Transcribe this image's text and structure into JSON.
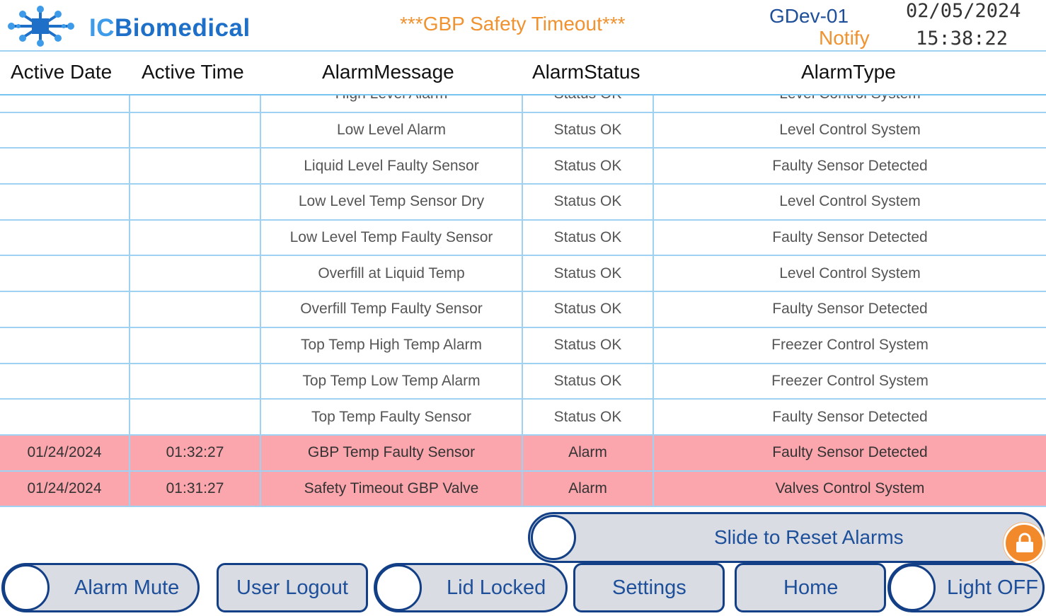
{
  "header": {
    "logo_text": "ICBiomedical",
    "banner": "***GBP Safety Timeout***",
    "device": "GDev-01",
    "notify": "Notify",
    "date": "02/05/2024",
    "time": "15:38:22"
  },
  "table": {
    "columns": [
      "Active Date",
      "Active Time",
      "AlarmMessage",
      "AlarmStatus",
      "AlarmType"
    ],
    "rows": [
      {
        "date": "",
        "time": "",
        "message": "High Level Alarm",
        "status": "Status OK",
        "type": "Level Control System",
        "state": "ok"
      },
      {
        "date": "",
        "time": "",
        "message": "Low Level Alarm",
        "status": "Status OK",
        "type": "Level Control System",
        "state": "ok"
      },
      {
        "date": "",
        "time": "",
        "message": "Liquid Level Faulty Sensor",
        "status": "Status OK",
        "type": "Faulty Sensor Detected",
        "state": "ok"
      },
      {
        "date": "",
        "time": "",
        "message": "Low Level Temp Sensor Dry",
        "status": "Status OK",
        "type": "Level Control System",
        "state": "ok"
      },
      {
        "date": "",
        "time": "",
        "message": "Low Level Temp Faulty Sensor",
        "status": "Status OK",
        "type": "Faulty Sensor Detected",
        "state": "ok"
      },
      {
        "date": "",
        "time": "",
        "message": "Overfill at Liquid Temp",
        "status": "Status OK",
        "type": "Level Control System",
        "state": "ok"
      },
      {
        "date": "",
        "time": "",
        "message": "Overfill Temp Faulty Sensor",
        "status": "Status OK",
        "type": "Faulty Sensor Detected",
        "state": "ok"
      },
      {
        "date": "",
        "time": "",
        "message": "Top Temp High Temp Alarm",
        "status": "Status OK",
        "type": "Freezer Control System",
        "state": "ok"
      },
      {
        "date": "",
        "time": "",
        "message": "Top Temp Low Temp Alarm",
        "status": "Status OK",
        "type": "Freezer Control System",
        "state": "ok"
      },
      {
        "date": "",
        "time": "",
        "message": "Top Temp Faulty Sensor",
        "status": "Status OK",
        "type": "Faulty Sensor Detected",
        "state": "ok"
      },
      {
        "date": "01/24/2024",
        "time": "01:32:27",
        "message": "GBP Temp Faulty Sensor",
        "status": "Alarm",
        "type": "Faulty Sensor Detected",
        "state": "alarm"
      },
      {
        "date": "01/24/2024",
        "time": "01:31:27",
        "message": "Safety Timeout GBP Valve",
        "status": "Alarm",
        "type": "Valves Control System",
        "state": "alarm"
      }
    ]
  },
  "controls": {
    "slide_reset": "Slide to Reset Alarms",
    "alarm_mute": "Alarm Mute",
    "user_logout": "User Logout",
    "lid_locked": "Lid Locked",
    "settings": "Settings",
    "home": "Home",
    "light": "Light OFF"
  },
  "icons": {
    "logo": "molecule-logo-icon",
    "lock": "padlock-icon"
  },
  "colors": {
    "alarm_row": "#fba5ad",
    "accent_orange": "#f0922f",
    "brand_blue": "#1e6fc8",
    "button_border": "#123f86",
    "button_fill": "#d9dde3"
  }
}
